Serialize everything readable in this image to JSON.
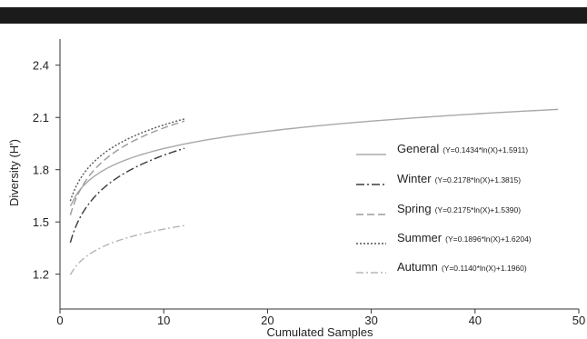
{
  "chart_data": {
    "type": "line",
    "title": "",
    "xlabel": "Cumulated Samples",
    "ylabel": "Diversity (H')",
    "xlim": [
      0,
      50
    ],
    "ylim": [
      1.0,
      2.55
    ],
    "x_ticks": [
      "0",
      "10",
      "20",
      "30",
      "40",
      "50"
    ],
    "y_ticks": [
      "1.2",
      "1.5",
      "1.8",
      "2.1",
      "2.4"
    ],
    "x_tick_values": [
      0,
      10,
      20,
      30,
      40,
      50
    ],
    "y_tick_values": [
      1.2,
      1.5,
      1.8,
      2.1,
      2.4
    ],
    "grid": false,
    "legend_position": "right",
    "series": [
      {
        "name": "General",
        "equation": "(Y=0.1434*ln(X)+1.5911)",
        "a": 0.1434,
        "b": 1.5911,
        "x_range": [
          1,
          48
        ],
        "color": "#a8a8a8",
        "dash": ""
      },
      {
        "name": "Winter",
        "equation": "(Y=0.2178*ln(X)+1.3815)",
        "a": 0.2178,
        "b": 1.3815,
        "x_range": [
          1,
          12
        ],
        "color": "#3a3a3a",
        "dash": "9 3 2 3"
      },
      {
        "name": "Spring",
        "equation": "(Y=0.2175*ln(X)+1.5390)",
        "a": 0.2175,
        "b": 1.539,
        "x_range": [
          1,
          12
        ],
        "color": "#9a9a9a",
        "dash": "8 4"
      },
      {
        "name": "Summer",
        "equation": "(Y=0.1896*ln(X)+1.6204)",
        "a": 0.1896,
        "b": 1.6204,
        "x_range": [
          1,
          12
        ],
        "color": "#555555",
        "dash": "2 2"
      },
      {
        "name": "Autumn",
        "equation": "(Y=0.1140*ln(X)+1.1960)",
        "a": 0.114,
        "b": 1.196,
        "x_range": [
          1,
          12
        ],
        "color": "#b5b5b5",
        "dash": "8 3 2 3"
      }
    ]
  }
}
